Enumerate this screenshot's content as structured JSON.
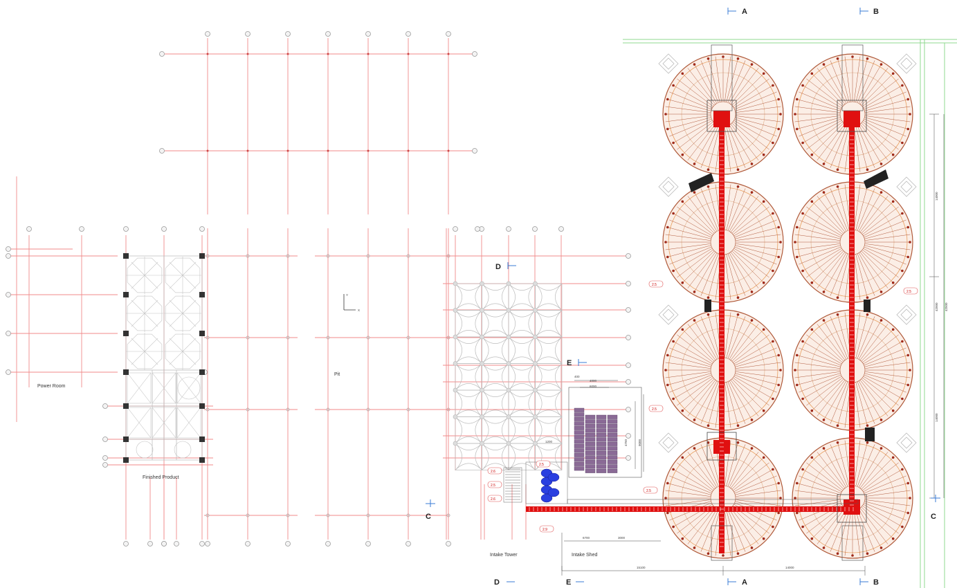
{
  "labels": {
    "power_room": "Power Room",
    "finished_product": "Finished Product",
    "pit": "Pit",
    "intake_tower": "Intake Tower",
    "intake_shed": "Intake Shed",
    "axis_y": "Y",
    "axis_x": "X"
  },
  "section_marks": {
    "a": "A",
    "b": "B",
    "c": "C",
    "d": "D",
    "e": "E"
  },
  "dimensions": {
    "d400": "400",
    "d4000": "4000",
    "d6000": "6000",
    "d4750": "4750",
    "d9000": "9000",
    "d6700": "6700",
    "d3000": "3000",
    "d1200": "1200",
    "d14000_bottom": "14000",
    "d15100": "15100",
    "d14000_v1": "14000",
    "d14000_v2": "14000",
    "d42000": "42000",
    "d42500": "42500"
  },
  "level_tags": {
    "t1": "2.5",
    "t2": "2.5",
    "t3": "2.5",
    "t4": "2.5",
    "t5": "2.6",
    "t6": "2.5",
    "t7": "2.6",
    "t8": "2.9",
    "t9": "2.5"
  },
  "colors": {
    "grid_line": "#f08a8a",
    "structure": "#b0b0b0",
    "conveyor": "#e01010",
    "silo_spokes": "#b0583a",
    "silo_fill": "#fbeee6",
    "storage_blocks": "#8a6a96",
    "tower_equipment": "#2a3fe0",
    "boundary": "#8fd88f"
  }
}
